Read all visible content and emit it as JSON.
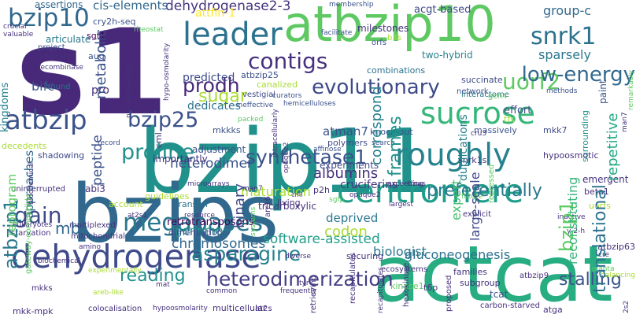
{
  "palette": {
    "dark_purple": "#440154",
    "indigo": "#3b528b",
    "blue": "#31688e",
    "teal": "#21918c",
    "sea_green": "#27ad81",
    "green": "#5ec962",
    "lime": "#aadc32",
    "yellow": "#fde725"
  },
  "words": [
    {
      "text": "bzip11",
      "color": "#21918c"
    },
    {
      "text": "bzips",
      "color": "#31688e"
    },
    {
      "text": "actcat",
      "color": "#27ad81"
    },
    {
      "text": "s1",
      "color": "#482878"
    },
    {
      "text": "atbzip10",
      "color": "#5ec962"
    },
    {
      "text": "centromere",
      "color": "#1f9e89"
    },
    {
      "text": "dehydrogenase",
      "color": "#3e4a89"
    },
    {
      "text": "leader",
      "color": "#2c728e"
    },
    {
      "text": "sucrose",
      "color": "#35b779"
    },
    {
      "text": "roughly",
      "color": "#26828e"
    },
    {
      "text": "atbzip",
      "color": "#3b528b"
    },
    {
      "text": "bzip10",
      "color": "#31688e"
    },
    {
      "text": "megabases",
      "color": "#2a788e"
    },
    {
      "text": "contigs",
      "color": "#46327e"
    },
    {
      "text": "synthetase1",
      "color": "#3b528b"
    },
    {
      "text": "heterodimerization",
      "color": "#433e85"
    },
    {
      "text": "bzip25",
      "color": "#3b528b"
    },
    {
      "text": "prodh",
      "color": "#482878"
    },
    {
      "text": "proline",
      "color": "#21918c"
    },
    {
      "text": "uorf2",
      "color": "#5ec962"
    },
    {
      "text": "snrk1",
      "color": "#2c728e"
    },
    {
      "text": "low-energy",
      "color": "#31688e"
    },
    {
      "text": "evolutionary",
      "color": "#3e4a89"
    },
    {
      "text": "asparagine",
      "color": "#26828e"
    },
    {
      "text": "stalling",
      "color": "#3b528b"
    },
    {
      "text": "dehydrogenase2-3",
      "color": "#46327e"
    },
    {
      "text": "atbzip1",
      "color": "#2a788e"
    },
    {
      "text": "gain",
      "color": "#3e4a89"
    },
    {
      "text": "reading",
      "color": "#21918c"
    },
    {
      "text": "chromosomes",
      "color": "#31688e"
    },
    {
      "text": "albumins",
      "color": "#46327e"
    },
    {
      "text": "frames",
      "color": "#21918c"
    },
    {
      "text": "peptide",
      "color": "#3b528b"
    },
    {
      "text": "binary",
      "color": "#3e4a89"
    },
    {
      "text": "translational",
      "color": "#2c728e"
    },
    {
      "text": "bzip1",
      "color": "#5ec962"
    },
    {
      "text": "correspond",
      "color": "#26828e"
    },
    {
      "text": "sugar",
      "color": "#aadc32"
    },
    {
      "text": "repetitive",
      "color": "#22a884"
    },
    {
      "text": "heterodimer",
      "color": "#3b528b"
    },
    {
      "text": "preferentially",
      "color": "#2a788e"
    },
    {
      "text": "expert",
      "color": "#44bf70"
    },
    {
      "text": "genome",
      "color": "#21918c"
    },
    {
      "text": "reprogram",
      "color": "#5ec962"
    },
    {
      "text": "approaches",
      "color": "#31688e"
    },
    {
      "text": "large-scale",
      "color": "#3e4a89"
    },
    {
      "text": "reconstituting",
      "color": "#35b779"
    },
    {
      "text": "software-assisted",
      "color": "#1f9e89"
    },
    {
      "text": "biologist",
      "color": "#2a788e"
    },
    {
      "text": "gluconeogenesis",
      "color": "#2c728e"
    },
    {
      "text": "metabolic",
      "color": "#3b528b"
    },
    {
      "text": "kingdoms",
      "color": "#26828e"
    },
    {
      "text": "group-c",
      "color": "#31688e"
    },
    {
      "text": "sparsely",
      "color": "#2a788e"
    },
    {
      "text": "atman7",
      "color": "#3b528b"
    },
    {
      "text": "codon",
      "color": "#aadc32"
    },
    {
      "text": "maturation",
      "color": "#aadc32"
    },
    {
      "text": "predicted",
      "color": "#3e4a89"
    },
    {
      "text": "dedicates",
      "color": "#2c728e"
    },
    {
      "text": "mb",
      "color": "#31688e"
    },
    {
      "text": "bifc",
      "color": "#3b528b"
    },
    {
      "text": "deprived",
      "color": "#2a788e"
    },
    {
      "text": "duplications",
      "color": "#26828e"
    },
    {
      "text": "cruciferins",
      "color": "#46327e"
    },
    {
      "text": "experiments",
      "color": "#3e4a89"
    },
    {
      "text": "retrotransposons",
      "color": "#440154"
    },
    {
      "text": "cis-elements",
      "color": "#31688e"
    },
    {
      "text": "milestones",
      "color": "#46327e"
    },
    {
      "text": "acgt-based",
      "color": "#3e4a89"
    },
    {
      "text": "attfin-1",
      "color": "#fde725"
    },
    {
      "text": "atbzip25",
      "color": "#3b528b"
    },
    {
      "text": "two-hybrid",
      "color": "#26828e"
    },
    {
      "text": "succinate",
      "color": "#3e4a89"
    },
    {
      "text": "canalized",
      "color": "#aadc32"
    },
    {
      "text": "polymers",
      "color": "#3e4a89"
    },
    {
      "text": "knock-out",
      "color": "#3b528b"
    },
    {
      "text": "mkkks",
      "color": "#3b528b"
    },
    {
      "text": "adjustment",
      "color": "#3b528b"
    },
    {
      "text": "importantly",
      "color": "#46327e"
    },
    {
      "text": "dimerisation",
      "color": "#3e4a89"
    },
    {
      "text": "transfer",
      "color": "#2c728e"
    },
    {
      "text": "assertions",
      "color": "#31688e"
    },
    {
      "text": "articulate",
      "color": "#2a788e"
    },
    {
      "text": "project",
      "color": "#3b528b"
    },
    {
      "text": "uninterrupted",
      "color": "#46327e"
    },
    {
      "text": "shadowing",
      "color": "#3e4a89"
    },
    {
      "text": "decedents",
      "color": "#aadc32"
    },
    {
      "text": "abi3",
      "color": "#46327e"
    },
    {
      "text": "pro",
      "color": "#46327e"
    },
    {
      "text": "aug",
      "color": "#3b528b"
    },
    {
      "text": "sgt1",
      "color": "#440154"
    },
    {
      "text": "cry2h-seq",
      "color": "#3b528b"
    },
    {
      "text": "vestigial",
      "color": "#3e4a89"
    },
    {
      "text": "orfs",
      "color": "#3b528b"
    },
    {
      "text": "b3s",
      "color": "#aadc32"
    },
    {
      "text": "combinations",
      "color": "#2c728e"
    },
    {
      "text": "effort",
      "color": "#3e4a89"
    },
    {
      "text": "tfs",
      "color": "#aadc32"
    },
    {
      "text": "mkk7",
      "color": "#3e4a89"
    },
    {
      "text": "interactome",
      "color": "#2a788e"
    },
    {
      "text": "gcn4",
      "color": "#5ec962"
    },
    {
      "text": "network",
      "color": "#3b528b"
    },
    {
      "text": "paint",
      "color": "#3b528b"
    },
    {
      "text": "surrounding",
      "color": "#21918c"
    },
    {
      "text": "hypoosmotic",
      "color": "#46327e"
    },
    {
      "text": "repressed",
      "color": "#5ec962"
    },
    {
      "text": "massively",
      "color": "#3b528b"
    },
    {
      "text": "snrk1s",
      "color": "#46327e"
    },
    {
      "text": "crucial",
      "color": "#46327e"
    },
    {
      "text": "valuable",
      "color": "#46327e"
    },
    {
      "text": "subdivided",
      "color": "#46327e"
    },
    {
      "text": "recombinase",
      "color": "#46327e"
    },
    {
      "text": "bound",
      "color": "#2c728e"
    },
    {
      "text": "record",
      "color": "#3b528b"
    },
    {
      "text": "curators",
      "color": "#3b528b"
    },
    {
      "text": "ineffective",
      "color": "#3b528b"
    },
    {
      "text": "hemicelluloses",
      "color": "#3b528b"
    },
    {
      "text": "search",
      "color": "#3b528b"
    },
    {
      "text": "affinose",
      "color": "#3b528b"
    },
    {
      "text": "facilitate",
      "color": "#3b528b"
    },
    {
      "text": "membership",
      "color": "#3b528b"
    },
    {
      "text": "rheostat",
      "color": "#5ec962"
    },
    {
      "text": "packed",
      "color": "#5ec962"
    },
    {
      "text": "methods",
      "color": "#3b528b"
    },
    {
      "text": "future",
      "color": "#5ec962"
    },
    {
      "text": "cru3",
      "color": "#46327e"
    },
    {
      "text": "gateway-compatible",
      "color": "#5ec962"
    },
    {
      "text": "biochemical",
      "color": "#46327e"
    },
    {
      "text": "multiplexed",
      "color": "#46327e"
    },
    {
      "text": "starvation",
      "color": "#46327e"
    },
    {
      "text": "eukaryotes",
      "color": "#46327e"
    },
    {
      "text": "mkks",
      "color": "#46327e"
    },
    {
      "text": "mkk-mpk",
      "color": "#46327e"
    },
    {
      "text": "colocalisation",
      "color": "#46327e"
    },
    {
      "text": "hypoosmolarity",
      "color": "#46327e"
    },
    {
      "text": "guidelines",
      "color": "#aadc32"
    },
    {
      "text": "account",
      "color": "#aadc32"
    },
    {
      "text": "at2s1",
      "color": "#46327e"
    },
    {
      "text": "resource",
      "color": "#46327e"
    },
    {
      "text": "multicellular",
      "color": "#46327e"
    },
    {
      "text": "at2s",
      "color": "#46327e"
    },
    {
      "text": "retrieving",
      "color": "#46327e"
    },
    {
      "text": "tricarboxylic",
      "color": "#46327e"
    },
    {
      "text": "living",
      "color": "#46327e"
    },
    {
      "text": "p2h",
      "color": "#46327e"
    },
    {
      "text": "sgfp",
      "color": "#5ec962"
    },
    {
      "text": "exceeding",
      "color": "#46327e"
    },
    {
      "text": "trnas",
      "color": "#46327e"
    },
    {
      "text": "largest",
      "color": "#46327e"
    },
    {
      "text": "explicit",
      "color": "#46327e"
    },
    {
      "text": "ecosystems",
      "color": "#46327e"
    },
    {
      "text": "subgroup",
      "color": "#46327e"
    },
    {
      "text": "families",
      "color": "#46327e"
    },
    {
      "text": "atbzip9",
      "color": "#46327e"
    },
    {
      "text": "kinase1",
      "color": "#5ec962"
    },
    {
      "text": "t6p",
      "color": "#46327e"
    },
    {
      "text": "tcat",
      "color": "#3b528b"
    },
    {
      "text": "atga",
      "color": "#46327e"
    },
    {
      "text": "carbon-starved",
      "color": "#46327e"
    },
    {
      "text": "uorfs",
      "color": "#aadc32"
    },
    {
      "text": "beta1",
      "color": "#46327e"
    },
    {
      "text": "y-2-h",
      "color": "#46327e"
    },
    {
      "text": "inactive",
      "color": "#46327e"
    },
    {
      "text": "planta",
      "color": "#5ec962"
    },
    {
      "text": "emergent",
      "color": "#46327e"
    },
    {
      "text": "balancing",
      "color": "#aadc32"
    },
    {
      "text": "cre",
      "color": "#46327e"
    },
    {
      "text": "atbzip63",
      "color": "#46327e"
    },
    {
      "text": "2s2",
      "color": "#46327e"
    },
    {
      "text": "mitochondrial",
      "color": "#46327e"
    },
    {
      "text": "amino",
      "color": "#46327e"
    },
    {
      "text": "mat",
      "color": "#46327e"
    },
    {
      "text": "areb-like",
      "color": "#aadc32"
    },
    {
      "text": "common",
      "color": "#46327e"
    },
    {
      "text": "frequently",
      "color": "#46327e"
    },
    {
      "text": "tyr",
      "color": "#46327e"
    },
    {
      "text": "diverse",
      "color": "#46327e"
    },
    {
      "text": "arr16",
      "color": "#46327e"
    },
    {
      "text": "systems",
      "color": "#5ec962"
    },
    {
      "text": "intracellularly",
      "color": "#46327e"
    },
    {
      "text": "opaque2",
      "color": "#46327e"
    },
    {
      "text": "microarrays",
      "color": "#46327e"
    },
    {
      "text": "securing",
      "color": "#46327e"
    },
    {
      "text": "hexokinase",
      "color": "#46327e"
    },
    {
      "text": "proposed",
      "color": "#46327e"
    },
    {
      "text": "man7",
      "color": "#46327e"
    },
    {
      "text": "remarkably",
      "color": "#5ec962"
    },
    {
      "text": "hypo-osmolarity",
      "color": "#46327e"
    },
    {
      "text": "non-fermenting",
      "color": "#46327e"
    },
    {
      "text": "cml",
      "color": "#46327e"
    },
    {
      "text": "recapitulates",
      "color": "#46327e"
    },
    {
      "text": "experimentally",
      "color": "#aadc32"
    },
    {
      "text": "2h5d3svfluklyyy-4",
      "color": "#aadc32"
    },
    {
      "text": "context",
      "color": "#5ec962"
    },
    {
      "text": "model",
      "color": "#5ec962"
    },
    {
      "text": "ash",
      "color": "#46327e"
    },
    {
      "text": "wait",
      "color": "#46327e"
    }
  ]
}
